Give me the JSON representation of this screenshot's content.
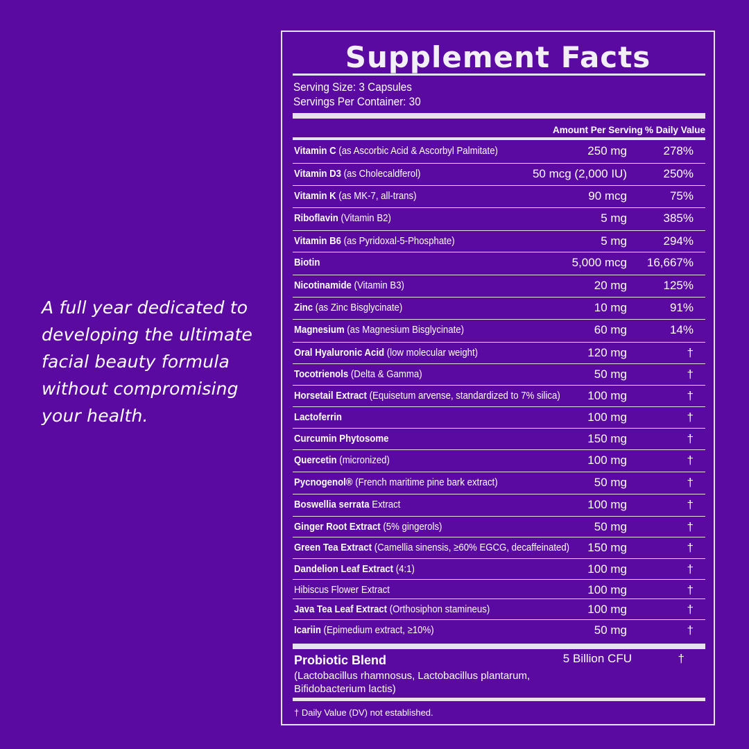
{
  "tagline": "A full year dedicated to developing the ultimate facial beauty formula without compromising your health.",
  "label": {
    "title": "Supplement Facts",
    "serving_size": "Serving Size: 3 Capsules",
    "servings_per_container": "Servings Per Container: 30",
    "col_amount": "Amount Per Serving",
    "col_dv": "% Daily Value",
    "rows": [
      {
        "name": "Vitamin C",
        "detail": " (as Ascorbic Acid & Ascorbyl Palmitate)",
        "amount": "250 mg",
        "dv": "278%"
      },
      {
        "name": "Vitamin D3",
        "detail": " (as Cholecaldferol)",
        "amount": "50 mcg (2,000 IU)",
        "dv": "250%"
      },
      {
        "name": "Vitamin K",
        "detail": " (as MK-7, all-trans)",
        "amount": "90 mcg",
        "dv": "75%"
      },
      {
        "name": "Riboflavin",
        "detail": " (Vitamin B2)",
        "amount": "5 mg",
        "dv": "385%"
      },
      {
        "name": "Vitamin B6",
        "detail": " (as Pyridoxal-5-Phosphate)",
        "amount": "5 mg",
        "dv": "294%"
      },
      {
        "name": "Biotin",
        "detail": "",
        "amount": "5,000 mcg",
        "dv": "16,667%"
      },
      {
        "name": "Nicotinamide",
        "detail": " (Vitamin B3)",
        "amount": "20 mg",
        "dv": "125%"
      },
      {
        "name": "Zinc",
        "detail": " (as Zinc Bisglycinate)",
        "amount": "10 mg",
        "dv": "91%"
      },
      {
        "name": "Magnesium",
        "detail": " (as Magnesium Bisglycinate)",
        "amount": "60 mg",
        "dv": "14%"
      },
      {
        "name": "Oral Hyaluronic Acid",
        "detail": " (low molecular weight)",
        "amount": "120 mg",
        "dv": "†"
      },
      {
        "name": "Tocotrienols",
        "detail": " (Delta & Gamma)",
        "amount": "50 mg",
        "dv": "†"
      },
      {
        "name": "Horsetail Extract",
        "detail": " (Equisetum arvense, standardized to 7% silica)",
        "amount": "100 mg",
        "dv": "†"
      },
      {
        "name": "Lactoferrin",
        "detail": "",
        "amount": "100 mg",
        "dv": "†"
      },
      {
        "name": "Curcumin Phytosome",
        "detail": "",
        "amount": "150 mg",
        "dv": "†"
      },
      {
        "name": "Quercetin",
        "detail": " (micronized)",
        "amount": "100 mg",
        "dv": "†"
      },
      {
        "name": "Pycnogenol®",
        "detail": " (French maritime pine bark extract)",
        "amount": "50 mg",
        "dv": "†"
      },
      {
        "name": "Boswellia serrata",
        "detail": " Extract",
        "amount": "100 mg",
        "dv": "†"
      },
      {
        "name": "Ginger Root Extract",
        "detail": " (5% gingerols)",
        "amount": "50 mg",
        "dv": "†"
      },
      {
        "name": "Green Tea Extract",
        "detail": " (Camellia sinensis, ≥60% EGCG, decaffeinated)",
        "amount": "150 mg",
        "dv": "†"
      },
      {
        "name": "Dandelion Leaf Extract",
        "detail": " (4:1)",
        "amount": "100 mg",
        "dv": "†"
      },
      {
        "name": "",
        "detail": "Hibiscus Flower Extract",
        "amount": "100 mg",
        "dv": "†"
      },
      {
        "name": "Java Tea Leaf Extract",
        "detail": " (Orthosiphon stamineus)",
        "amount": "100 mg",
        "dv": "†"
      },
      {
        "name": "Icariin",
        "detail": " (Epimedium extract, ≥10%)",
        "amount": "50 mg",
        "dv": "†"
      }
    ],
    "blend": {
      "name": "Probiotic Blend",
      "description": "(Lactobacillus rhamnosus, Lactobacillus plantarum, Bifidobacterium lactis)",
      "amount": "5 Billion CFU",
      "dv": "†"
    },
    "footnote": "† Daily Value (DV) not established."
  }
}
